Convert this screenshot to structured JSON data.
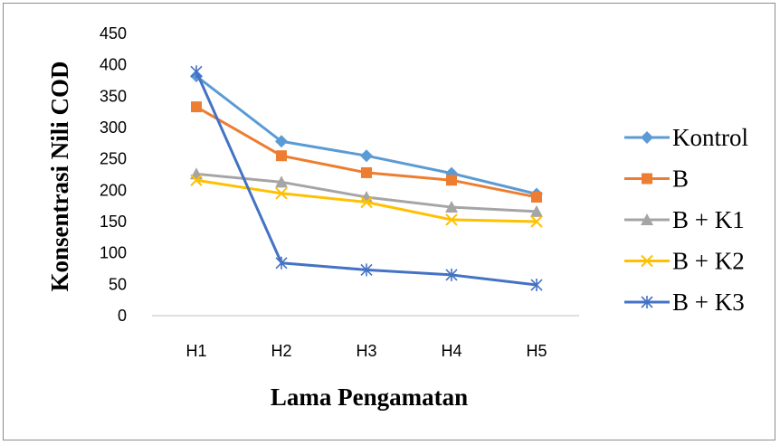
{
  "chart_data": {
    "type": "line",
    "categories": [
      "H1",
      "H2",
      "H3",
      "H4",
      "H5"
    ],
    "xlabel": "Lama Pengamatan",
    "ylabel": "Konsentrasi Nili COD",
    "ylim": [
      0,
      450
    ],
    "yticks": [
      0,
      50,
      100,
      150,
      200,
      250,
      300,
      350,
      400,
      450
    ],
    "grid": false,
    "legend_position": "right",
    "series": [
      {
        "name": "Kontrol",
        "values": [
          382,
          278,
          255,
          227,
          194
        ],
        "color": "#5B9BD5",
        "marker": "diamond"
      },
      {
        "name": "B",
        "values": [
          333,
          255,
          228,
          216,
          189
        ],
        "color": "#ED7D31",
        "marker": "square"
      },
      {
        "name": "B + K1",
        "values": [
          226,
          213,
          189,
          173,
          166
        ],
        "color": "#A5A5A5",
        "marker": "triangle"
      },
      {
        "name": "B + K2",
        "values": [
          216,
          195,
          181,
          153,
          150
        ],
        "color": "#FFC000",
        "marker": "x"
      },
      {
        "name": "B + K3",
        "values": [
          389,
          84,
          73,
          65,
          49
        ],
        "color": "#4472C4",
        "marker": "star"
      }
    ]
  }
}
